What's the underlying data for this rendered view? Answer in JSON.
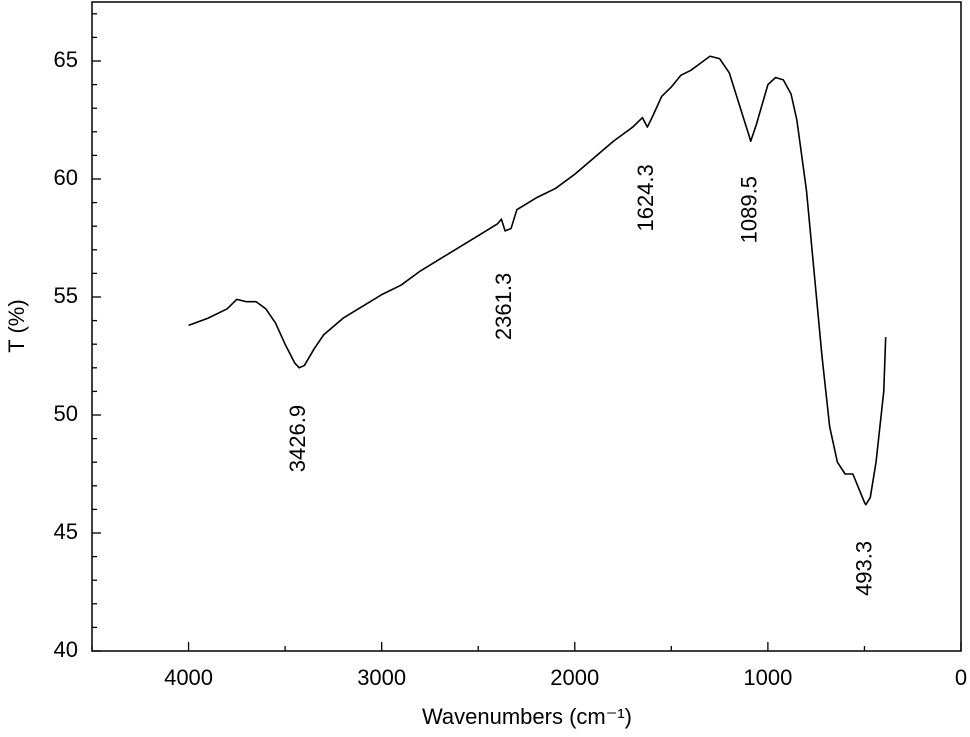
{
  "chart_data": {
    "type": "line",
    "xlabel": "Wavenumbers (cm⁻¹)",
    "ylabel": "T (%)",
    "xlim": [
      4500,
      0
    ],
    "ylim": [
      40,
      67.5
    ],
    "xticks": [
      4000,
      3000,
      2000,
      1000,
      0
    ],
    "yticks": [
      40,
      45,
      50,
      55,
      60,
      65
    ],
    "xminorticks": [
      4500,
      3500,
      2500,
      1500,
      500
    ],
    "yminorticks": [
      41,
      42,
      43,
      44,
      46,
      47,
      48,
      49,
      51,
      52,
      53,
      54,
      56,
      57,
      58,
      59,
      61,
      62,
      63,
      64,
      66,
      67
    ],
    "color": "#000000",
    "x": [
      4000,
      3900,
      3800,
      3750,
      3700,
      3650,
      3600,
      3550,
      3500,
      3450,
      3427,
      3400,
      3350,
      3300,
      3200,
      3100,
      3000,
      2900,
      2800,
      2700,
      2600,
      2500,
      2400,
      2380,
      2361,
      2330,
      2300,
      2200,
      2100,
      2000,
      1900,
      1800,
      1700,
      1650,
      1624,
      1600,
      1550,
      1500,
      1450,
      1400,
      1350,
      1300,
      1250,
      1200,
      1150,
      1100,
      1089,
      1060,
      1000,
      960,
      920,
      880,
      850,
      800,
      760,
      720,
      680,
      640,
      600,
      560,
      530,
      500,
      493,
      470,
      440,
      400,
      390
    ],
    "values": [
      53.8,
      54.1,
      54.5,
      54.9,
      54.8,
      54.8,
      54.5,
      53.9,
      53.0,
      52.2,
      52.0,
      52.1,
      52.8,
      53.4,
      54.1,
      54.6,
      55.1,
      55.5,
      56.1,
      56.6,
      57.1,
      57.6,
      58.1,
      58.3,
      57.8,
      57.9,
      58.7,
      59.2,
      59.6,
      60.2,
      60.9,
      61.6,
      62.2,
      62.6,
      62.2,
      62.6,
      63.5,
      63.9,
      64.4,
      64.6,
      64.9,
      65.2,
      65.1,
      64.5,
      63.2,
      61.9,
      61.6,
      62.3,
      64.0,
      64.3,
      64.2,
      63.6,
      62.5,
      59.5,
      56.0,
      52.5,
      49.5,
      48.0,
      47.5,
      47.5,
      46.9,
      46.3,
      46.2,
      46.5,
      48.0,
      51.0,
      53.3
    ],
    "annotations": [
      {
        "text": "3426.9",
        "x": 3426.9,
        "y": 49.0
      },
      {
        "text": "2361.3",
        "x": 2361.3,
        "y": 54.6
      },
      {
        "text": "1624.3",
        "x": 1624.3,
        "y": 59.2
      },
      {
        "text": "1089.5",
        "x": 1089.5,
        "y": 58.7
      },
      {
        "text": "493.3",
        "x": 493.3,
        "y": 43.5
      }
    ]
  }
}
